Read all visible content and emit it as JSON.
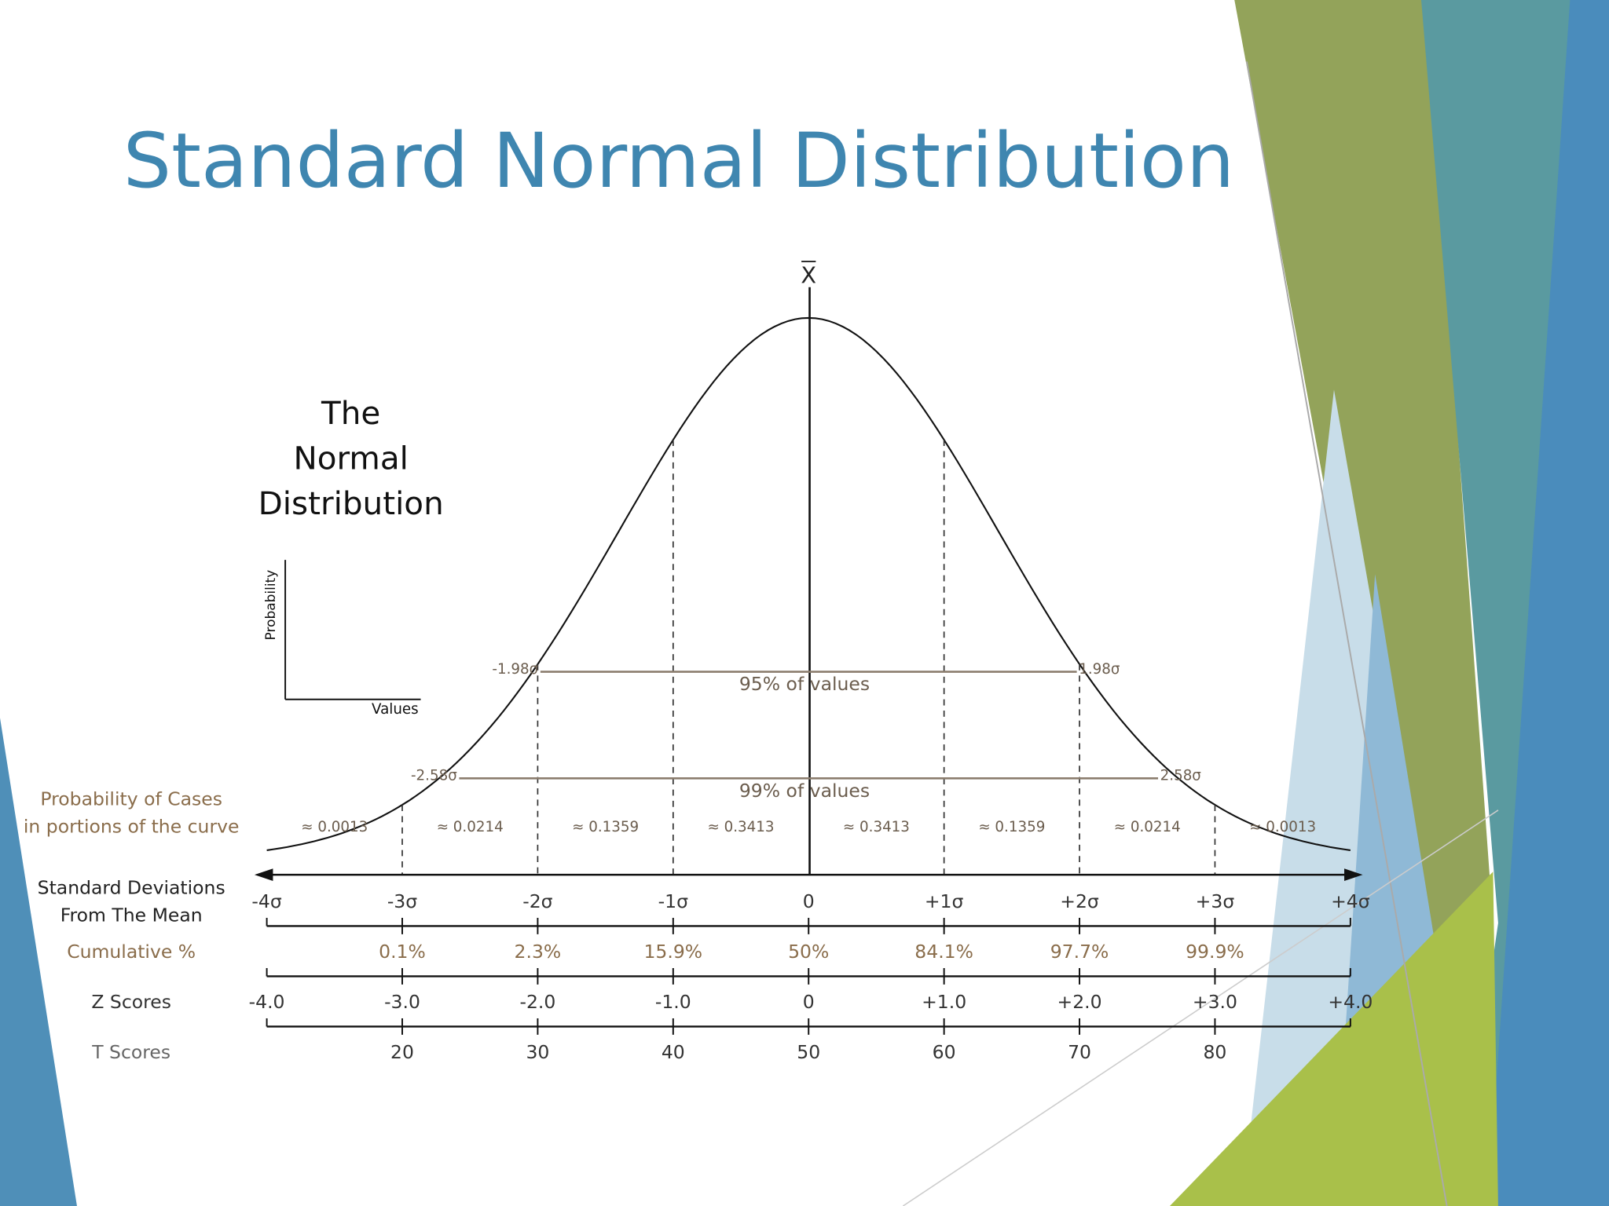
{
  "title": "Standard Normal Distribution",
  "inset": {
    "title_lines": [
      "The",
      "Normal",
      "Distribution"
    ],
    "y_label": "Probability",
    "x_label": "Values"
  },
  "mean_label": "X",
  "ranges": [
    {
      "left": "-1.98σ",
      "right": "1.98σ",
      "label": "95% of values"
    },
    {
      "left": "-2.58σ",
      "right": "2.58σ",
      "label": "99% of values"
    }
  ],
  "probability": {
    "label_lines": [
      "Probability of Cases",
      "in portions of the curve"
    ],
    "values": [
      "≈ 0.0013",
      "≈ 0.0214",
      "≈ 0.1359",
      "≈ 0.3413",
      "≈ 0.3413",
      "≈ 0.1359",
      "≈ 0.0214",
      "≈ 0.0013"
    ]
  },
  "rows": [
    {
      "label_lines": [
        "Standard Deviations",
        "From The Mean"
      ],
      "ticks": [
        "-4σ",
        "-3σ",
        "-2σ",
        "-1σ",
        "0",
        "+1σ",
        "+2σ",
        "+3σ",
        "+4σ"
      ]
    },
    {
      "label_lines": [
        "Cumulative %"
      ],
      "ticks": [
        "0.1%",
        "2.3%",
        "15.9%",
        "50%",
        "84.1%",
        "97.7%",
        "99.9%"
      ]
    },
    {
      "label_lines": [
        "Z Scores"
      ],
      "ticks": [
        "-4.0",
        "-3.0",
        "-2.0",
        "-1.0",
        "0",
        "+1.0",
        "+2.0",
        "+3.0",
        "+4.0"
      ]
    },
    {
      "label_lines": [
        "T Scores"
      ],
      "ticks": [
        "20",
        "30",
        "40",
        "50",
        "60",
        "70",
        "80"
      ]
    }
  ]
}
